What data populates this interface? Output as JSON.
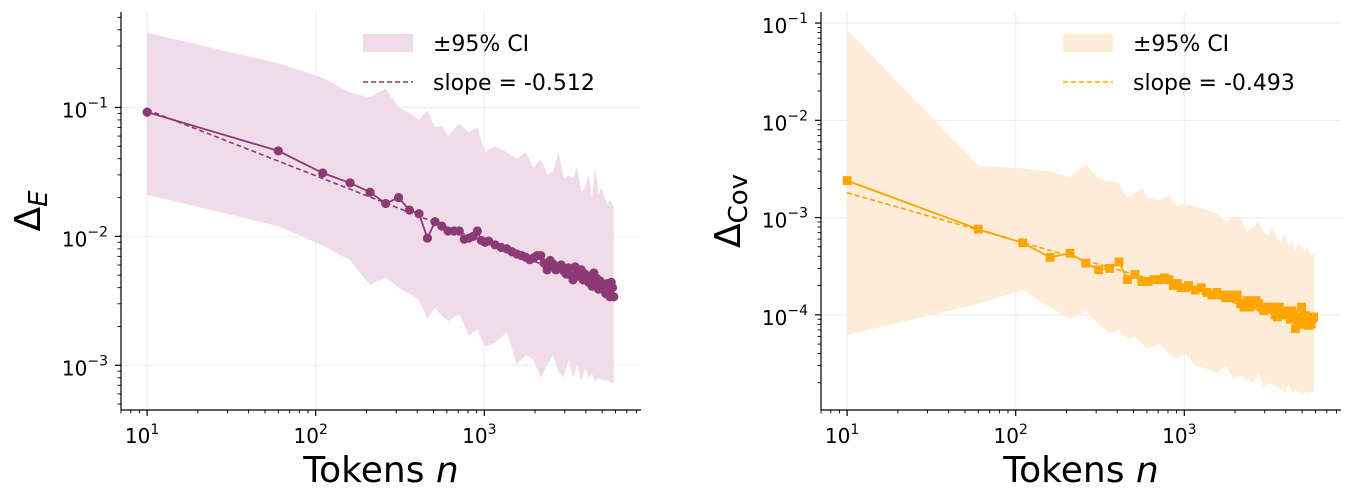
{
  "chart_data": [
    {
      "type": "line",
      "id": "left",
      "title": "",
      "xlabel_text": "Tokens ",
      "xlabel_var": "n",
      "ylabel_main": "Δ",
      "ylabel_sub": "E",
      "xscale": "log",
      "yscale": "log",
      "xlim": [
        7,
        8500
      ],
      "ylim": [
        0.00045,
        0.55
      ],
      "xticks": [
        {
          "value": 10,
          "exp": "1"
        },
        {
          "value": 100,
          "exp": "2"
        },
        {
          "value": 1000,
          "exp": "3"
        }
      ],
      "yticks": [
        {
          "value": 0.001,
          "exp": "−3"
        },
        {
          "value": 0.01,
          "exp": "−2"
        },
        {
          "value": 0.1,
          "exp": "−1"
        }
      ],
      "grid": true,
      "legend_position": "top-right",
      "color": "#8b3a76",
      "band_color": "#f0dbe9",
      "marker": "circle",
      "series": [
        {
          "name": "Δ_E",
          "x": [
            10,
            60,
            110,
            160,
            210,
            260,
            310,
            360,
            410,
            460,
            510,
            560,
            610,
            660,
            710,
            760,
            810,
            860,
            910,
            960,
            1010,
            1060,
            1160,
            1260,
            1360,
            1460,
            1560,
            1660,
            1760,
            1860,
            1960,
            2060,
            2160,
            2260,
            2360,
            2460,
            2560,
            2660,
            2760,
            2860,
            2960,
            3060,
            3160,
            3260,
            3360,
            3460,
            3560,
            3660,
            3760,
            3860,
            3960,
            4060,
            4160,
            4260,
            4360,
            4460,
            4560,
            4660,
            4760,
            4860,
            4960,
            5060,
            5160,
            5260,
            5360,
            5460,
            5560,
            5660,
            5760,
            5860
          ],
          "y": [
            0.092,
            0.046,
            0.031,
            0.026,
            0.022,
            0.018,
            0.02,
            0.016,
            0.015,
            0.0097,
            0.013,
            0.012,
            0.011,
            0.011,
            0.011,
            0.0095,
            0.0097,
            0.01,
            0.011,
            0.0093,
            0.009,
            0.0092,
            0.0086,
            0.0082,
            0.008,
            0.0076,
            0.0073,
            0.0071,
            0.0069,
            0.0066,
            0.0068,
            0.0071,
            0.0071,
            0.0062,
            0.0055,
            0.0065,
            0.0061,
            0.0055,
            0.0058,
            0.006,
            0.0054,
            0.0051,
            0.0057,
            0.005,
            0.0046,
            0.0058,
            0.0053,
            0.0049,
            0.0055,
            0.0046,
            0.0051,
            0.0049,
            0.0044,
            0.0048,
            0.0041,
            0.0052,
            0.0043,
            0.0047,
            0.0039,
            0.0045,
            0.0041,
            0.004,
            0.0038,
            0.0036,
            0.0043,
            0.0041,
            0.0034,
            0.0044,
            0.004,
            0.0034
          ]
        },
        {
          "name": "slope = -0.512",
          "fit_slope": -0.512,
          "fit_intercept_at_10": 0.096,
          "x_range": [
            10,
            5860
          ]
        },
        {
          "name": "±95% CI",
          "x": [
            10,
            60,
            110,
            160,
            210,
            260,
            310,
            360,
            410,
            460,
            510,
            560,
            610,
            710,
            810,
            910,
            1010,
            1160,
            1360,
            1560,
            1760,
            1960,
            2160,
            2360,
            2560,
            2760,
            2960,
            3160,
            3360,
            3560,
            3760,
            3960,
            4160,
            4360,
            4560,
            4760,
            4960,
            5160,
            5360,
            5560,
            5860
          ],
          "upper": [
            0.38,
            0.22,
            0.17,
            0.13,
            0.12,
            0.14,
            0.1,
            0.09,
            0.08,
            0.095,
            0.07,
            0.072,
            0.06,
            0.075,
            0.064,
            0.07,
            0.045,
            0.05,
            0.045,
            0.04,
            0.045,
            0.034,
            0.04,
            0.03,
            0.032,
            0.045,
            0.028,
            0.03,
            0.028,
            0.035,
            0.022,
            0.024,
            0.03,
            0.02,
            0.034,
            0.021,
            0.024,
            0.02,
            0.018,
            0.019,
            0.017
          ],
          "lower": [
            0.021,
            0.012,
            0.0085,
            0.0065,
            0.0042,
            0.0048,
            0.004,
            0.0036,
            0.0032,
            0.0023,
            0.0028,
            0.0024,
            0.0022,
            0.0025,
            0.0017,
            0.0019,
            0.0014,
            0.0015,
            0.0018,
            0.001,
            0.0012,
            0.0011,
            0.0008,
            0.001,
            0.0012,
            0.0009,
            0.0008,
            0.0011,
            0.0008,
            0.001,
            0.00075,
            0.00095,
            0.0008,
            0.00085,
            0.00075,
            0.0008,
            0.00078,
            0.00076,
            0.00077,
            0.00074,
            0.00072
          ]
        }
      ],
      "legend": [
        {
          "label": "±95% CI",
          "kind": "band"
        },
        {
          "label": "slope = -0.512",
          "kind": "dashed-line"
        }
      ]
    },
    {
      "type": "line",
      "id": "right",
      "title": "",
      "xlabel_text": "Tokens ",
      "xlabel_var": "n",
      "ylabel_main": "Δ",
      "ylabel_sub": "Cov",
      "xscale": "log",
      "yscale": "log",
      "xlim": [
        7,
        8500
      ],
      "ylim": [
        1.05e-05,
        0.13
      ],
      "xticks": [
        {
          "value": 10,
          "exp": "1"
        },
        {
          "value": 100,
          "exp": "2"
        },
        {
          "value": 1000,
          "exp": "3"
        }
      ],
      "yticks": [
        {
          "value": 0.0001,
          "exp": "−4"
        },
        {
          "value": 0.001,
          "exp": "−3"
        },
        {
          "value": 0.01,
          "exp": "−2"
        },
        {
          "value": 0.1,
          "exp": "−1"
        }
      ],
      "grid": true,
      "legend_position": "top-right",
      "color": "#ffa500",
      "band_color": "#fdecd7",
      "marker": "square",
      "series": [
        {
          "name": "Δ_Cov",
          "x": [
            10,
            60,
            110,
            160,
            210,
            260,
            310,
            360,
            410,
            460,
            510,
            560,
            610,
            660,
            710,
            760,
            810,
            860,
            910,
            960,
            1010,
            1060,
            1160,
            1260,
            1360,
            1460,
            1560,
            1660,
            1760,
            1860,
            1960,
            2060,
            2160,
            2260,
            2360,
            2460,
            2560,
            2660,
            2760,
            2860,
            2960,
            3060,
            3160,
            3260,
            3360,
            3460,
            3560,
            3660,
            3760,
            3860,
            3960,
            4060,
            4160,
            4260,
            4360,
            4460,
            4560,
            4660,
            4760,
            4860,
            4960,
            5060,
            5160,
            5260,
            5360,
            5460,
            5560,
            5660,
            5760,
            5860
          ],
          "y": [
            0.0024,
            0.00076,
            0.00055,
            0.00039,
            0.00043,
            0.00034,
            0.00029,
            0.0003,
            0.00035,
            0.00023,
            0.00026,
            0.00022,
            0.00022,
            0.00023,
            0.00023,
            0.00024,
            0.00023,
            0.0002,
            0.00021,
            0.00019,
            0.00019,
            0.0002,
            0.00018,
            0.00019,
            0.00017,
            0.00016,
            0.00017,
            0.00016,
            0.00015,
            0.00016,
            0.00015,
            0.00016,
            0.00013,
            0.00012,
            0.00014,
            0.00012,
            0.00013,
            0.00014,
            0.00013,
            0.00012,
            0.00011,
            0.00012,
            0.000115,
            0.00012,
            0.000115,
            0.0001,
            9.5e-05,
            0.00012,
            0.00011,
            0.0001,
            0.00011,
            0.0001,
            0.0001,
            9e-05,
            0.00011,
            0.0001,
            7.2e-05,
            9.5e-05,
            8.5e-05,
            9e-05,
            0.00012,
            8e-05,
            9.5e-05,
            9.8e-05,
            9e-05,
            7.8e-05,
            8.5e-05,
            8e-05,
            9.2e-05,
            9.5e-05
          ]
        },
        {
          "name": "slope = -0.493",
          "fit_slope": -0.493,
          "fit_intercept_at_10": 0.0018,
          "x_range": [
            10,
            5860
          ]
        },
        {
          "name": "±95% CI",
          "x": [
            10,
            60,
            110,
            160,
            210,
            260,
            310,
            360,
            410,
            460,
            510,
            560,
            610,
            710,
            810,
            910,
            1010,
            1160,
            1360,
            1560,
            1760,
            1960,
            2160,
            2360,
            2560,
            2760,
            2960,
            3160,
            3360,
            3560,
            3760,
            3960,
            4160,
            4360,
            4560,
            4760,
            4960,
            5160,
            5360,
            5560,
            5860
          ],
          "upper": [
            0.085,
            0.0034,
            0.0032,
            0.003,
            0.0026,
            0.0035,
            0.0025,
            0.0024,
            0.0023,
            0.0016,
            0.0018,
            0.002,
            0.0016,
            0.0015,
            0.0017,
            0.0013,
            0.0014,
            0.0013,
            0.0012,
            0.0011,
            0.0009,
            0.001,
            0.001,
            0.0007,
            0.0008,
            0.0009,
            0.0007,
            0.00065,
            0.0008,
            0.0006,
            0.00058,
            0.0007,
            0.0005,
            0.0006,
            0.00045,
            0.00055,
            0.0005,
            0.00045,
            0.0005,
            0.00043,
            0.00042
          ],
          "lower": [
            6.2e-05,
            0.00013,
            0.00018,
            0.00012,
            9e-05,
            0.00011,
            8e-05,
            6.5e-05,
            7e-05,
            5.5e-05,
            6e-05,
            5e-05,
            4.5e-05,
            5e-05,
            4e-05,
            3.5e-05,
            4e-05,
            3e-05,
            2.8e-05,
            2.5e-05,
            3e-05,
            2.2e-05,
            2.4e-05,
            2.1e-05,
            2e-05,
            2.5e-05,
            1.8e-05,
            2e-05,
            1.9e-05,
            1.8e-05,
            1.7e-05,
            1.6e-05,
            1.9e-05,
            1.6e-05,
            1.7e-05,
            1.6e-05,
            1.5e-05,
            1.6e-05,
            1.5e-05,
            1.6e-05,
            1.6e-05
          ]
        }
      ],
      "legend": [
        {
          "label": "±95% CI",
          "kind": "band"
        },
        {
          "label": "slope = -0.493",
          "kind": "dashed-line"
        }
      ]
    }
  ]
}
